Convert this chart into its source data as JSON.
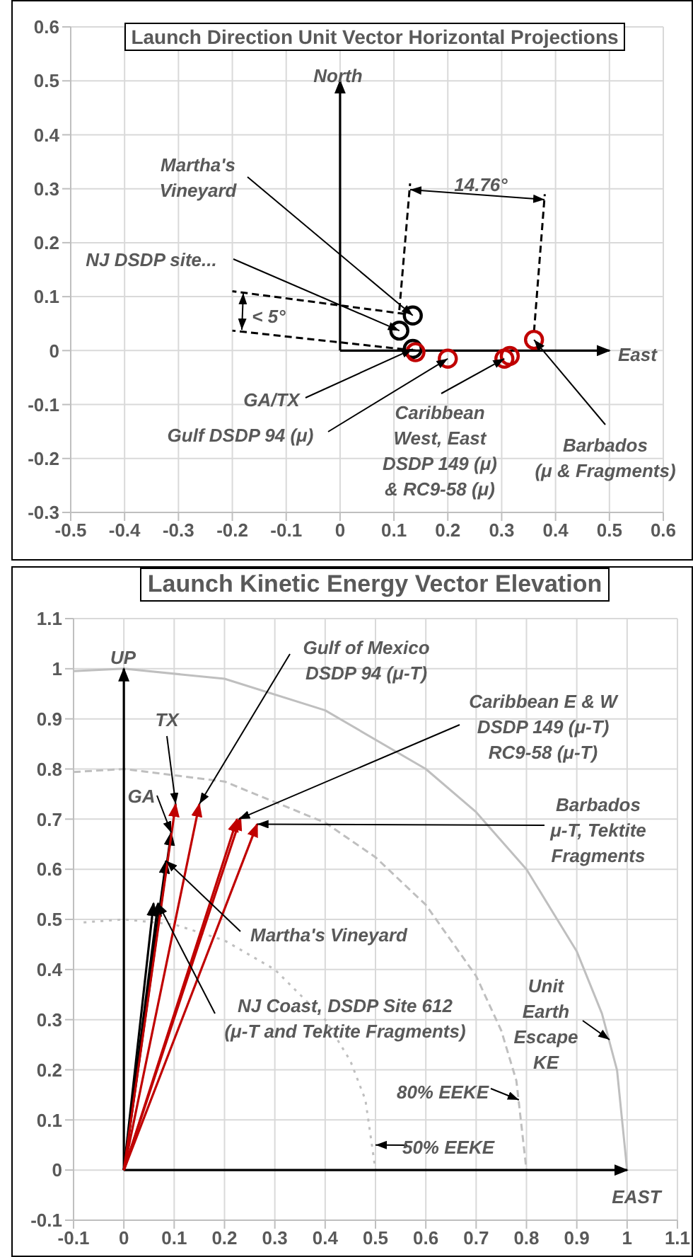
{
  "chart_data": [
    {
      "type": "scatter",
      "title": "Launch Direction Unit Vector Horizontal Projections",
      "xlim": [
        -0.5,
        0.6
      ],
      "ylim": [
        -0.3,
        0.6
      ],
      "xticks": [
        -0.5,
        -0.4,
        -0.3,
        -0.2,
        -0.1,
        0,
        0.1,
        0.2,
        0.3,
        0.4,
        0.5,
        0.6
      ],
      "yticks": [
        -0.3,
        -0.2,
        -0.1,
        0,
        0.1,
        0.2,
        0.3,
        0.4,
        0.5,
        0.6
      ],
      "grid": true,
      "series": [
        {
          "type": "line",
          "color": "#000000",
          "x": [
            0,
            0
          ],
          "values": [
            0,
            0.5
          ],
          "line_style": "solid"
        },
        {
          "type": "line",
          "color": "#000000",
          "x": [
            0,
            0.5
          ],
          "values": [
            0,
            0
          ],
          "line_style": "solid"
        },
        {
          "type": "line",
          "color": "#000000",
          "x": [
            0.12,
            -0.2
          ],
          "values": [
            0.068,
            0.11
          ],
          "line_style": "dashed"
        },
        {
          "type": "line",
          "color": "#000000",
          "x": [
            0.14,
            -0.2
          ],
          "values": [
            0,
            0.037
          ],
          "line_style": "dashed"
        },
        {
          "type": "line",
          "color": "#000000",
          "x": [
            0.11,
            0.13
          ],
          "values": [
            0.075,
            0.31
          ],
          "line_style": "dashed"
        },
        {
          "type": "line",
          "color": "#000000",
          "x": [
            0.36,
            0.38
          ],
          "values": [
            0.035,
            0.29
          ],
          "line_style": "dashed"
        },
        {
          "color": "#000000",
          "x": [
            0.135,
            0.11,
            0.135
          ],
          "values": [
            0.065,
            0.037,
            0.003
          ],
          "marker": "circle"
        },
        {
          "color": "#c00000",
          "x": [
            0.14,
            0.2,
            0.305,
            0.315,
            0.36
          ],
          "values": [
            -0.003,
            -0.015,
            -0.015,
            -0.01,
            0.02
          ],
          "marker": "circle"
        }
      ],
      "annotations": [
        {
          "text": "Martha's\nVineyard",
          "x": 0.135,
          "y": 0.065
        },
        {
          "text": "NJ DSDP site...",
          "x": 0.11,
          "y": 0.037
        },
        {
          "text": "GA/TX",
          "x": 0.135,
          "y": 0.003
        },
        {
          "text": "Gulf DSDP 94 (μ)",
          "x": 0.2,
          "y": -0.015
        },
        {
          "text": "Caribbean\nWest, East\nDSDP 149 (μ)\n& RC9-58 (μ)",
          "x": 0.305,
          "y": -0.015
        },
        {
          "text": "Barbados\n(μ & Fragments)",
          "x": 0.36,
          "y": 0.02
        },
        {
          "text": "North",
          "x": 0,
          "y": 0.5
        },
        {
          "text": "East",
          "x": 0.5,
          "y": 0
        },
        "14.76°",
        "< 5°"
      ]
    },
    {
      "type": "line",
      "title": "Launch Kinetic Energy Vector Elevation",
      "xlim": [
        -0.1,
        1.1
      ],
      "ylim": [
        -0.1,
        1.1
      ],
      "xticks": [
        -0.1,
        0,
        0.1,
        0.2,
        0.3,
        0.4,
        0.5,
        0.6,
        0.7,
        0.8,
        0.9,
        1,
        1.1
      ],
      "yticks": [
        -0.1,
        0,
        0.1,
        0.2,
        0.3,
        0.4,
        0.5,
        0.6,
        0.7,
        0.8,
        0.9,
        1,
        1.1
      ],
      "grid": true,
      "series": [
        {
          "color": "#bfbfbf",
          "x": [
            -0.1,
            0,
            0.2,
            0.4,
            0.6,
            0.7,
            0.8,
            0.9,
            0.95,
            0.98,
            1
          ],
          "values": [
            0.995,
            1,
            0.98,
            0.917,
            0.8,
            0.714,
            0.6,
            0.436,
            0.312,
            0.199,
            0
          ],
          "line_style": "solid"
        },
        {
          "color": "#bfbfbf",
          "x": [
            -0.1,
            0,
            0.2,
            0.4,
            0.5,
            0.6,
            0.7,
            0.75,
            0.78,
            0.8
          ],
          "values": [
            0.794,
            0.8,
            0.775,
            0.693,
            0.624,
            0.529,
            0.387,
            0.278,
            0.178,
            0
          ],
          "line_style": "dashed"
        },
        {
          "color": "#bfbfbf",
          "x": [
            -0.08,
            0,
            0.1,
            0.2,
            0.3,
            0.4,
            0.45,
            0.48,
            0.5
          ],
          "values": [
            0.494,
            0.5,
            0.49,
            0.458,
            0.4,
            0.3,
            0.218,
            0.14,
            0
          ],
          "line_style": "dotted"
        },
        {
          "color": "#000000",
          "x": [
            0,
            0
          ],
          "values": [
            0,
            1
          ],
          "line_style": "solid"
        },
        {
          "color": "#000000",
          "x": [
            0,
            1
          ],
          "values": [
            0,
            0
          ],
          "line_style": "solid"
        },
        {
          "color": "#000000",
          "x": [
            0,
            0.059
          ],
          "values": [
            0,
            0.532
          ],
          "line_style": "solid"
        },
        {
          "color": "#000000",
          "x": [
            0,
            0.068
          ],
          "values": [
            0,
            0.532
          ],
          "line_style": "solid"
        },
        {
          "color": "#000000",
          "x": [
            0,
            0.084
          ],
          "values": [
            0,
            0.617
          ],
          "line_style": "solid"
        },
        {
          "color": "#000000",
          "x": [
            0,
            0.094
          ],
          "values": [
            0,
            0.673
          ],
          "line_style": "solid"
        },
        {
          "color": "#c00000",
          "x": [
            0,
            0.103
          ],
          "values": [
            0,
            0.73
          ],
          "line_style": "solid"
        },
        {
          "color": "#c00000",
          "x": [
            0,
            0.15
          ],
          "values": [
            0,
            0.73
          ],
          "line_style": "solid"
        },
        {
          "color": "#c00000",
          "x": [
            0,
            0.225
          ],
          "values": [
            0,
            0.7
          ],
          "line_style": "solid"
        },
        {
          "color": "#c00000",
          "x": [
            0,
            0.232
          ],
          "values": [
            0,
            0.703
          ],
          "line_style": "solid"
        },
        {
          "color": "#c00000",
          "x": [
            0,
            0.265
          ],
          "values": [
            0,
            0.69
          ],
          "line_style": "solid"
        }
      ],
      "annotations": [
        {
          "text": "UP",
          "x": 0,
          "y": 1
        },
        {
          "text": "EAST",
          "x": 1,
          "y": 0
        },
        {
          "text": "TX",
          "x": 0.103,
          "y": 0.73
        },
        {
          "text": "GA",
          "x": 0.094,
          "y": 0.673
        },
        {
          "text": "Gulf of Mexico\nDSDP 94 (μ-T)",
          "x": 0.15,
          "y": 0.73
        },
        {
          "text": "Caribbean E & W\nDSDP 149 (μ-T)\nRC9-58 (μ-T)",
          "x": 0.228,
          "y": 0.7
        },
        {
          "text": "Barbados\nμ-T, Tektite\nFragments",
          "x": 0.265,
          "y": 0.69
        },
        {
          "text": "Martha's Vineyard",
          "x": 0.084,
          "y": 0.617
        },
        {
          "text": "NJ Coast,  DSDP Site 612\n(μ-T and Tektite Fragments)",
          "x": 0.068,
          "y": 0.532
        },
        {
          "text": "Unit\nEarth\nEscape\nKE",
          "x": 0.965,
          "y": 0.26
        },
        {
          "text": "80% EEKE",
          "x": 0.785,
          "y": 0.14
        },
        {
          "text": "50% EEKE",
          "x": 0.5,
          "y": 0.05
        }
      ]
    }
  ]
}
